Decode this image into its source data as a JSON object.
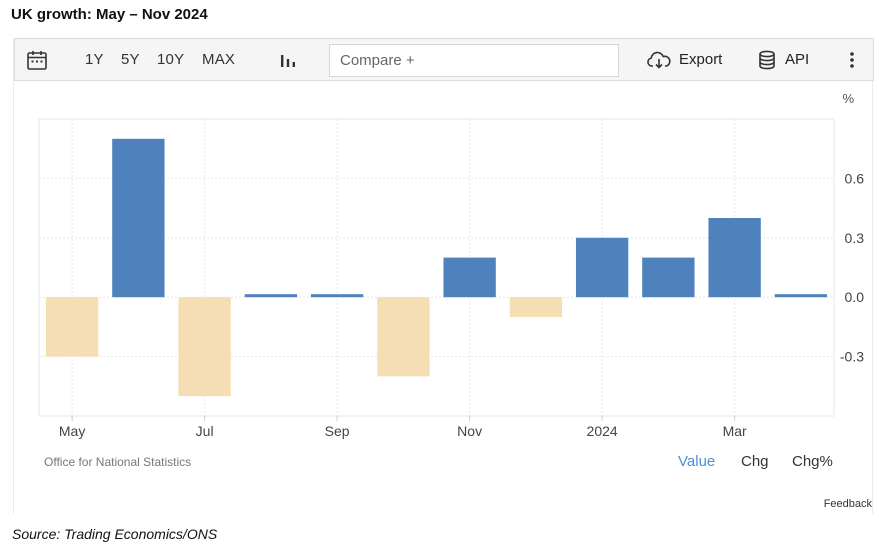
{
  "page": {
    "title": "UK growth: May – Nov 2024",
    "source": "Source: Trading Economics/ONS"
  },
  "toolbar": {
    "ranges": [
      "1Y",
      "5Y",
      "10Y",
      "MAX"
    ],
    "compare_placeholder": "Compare +",
    "export_label": "Export",
    "api_label": "API",
    "icons": {
      "calendar": "calendar-icon",
      "chart_type": "bar-chart-icon",
      "export": "cloud-download-icon",
      "api": "database-icon",
      "more": "more-vertical-icon"
    }
  },
  "chart_footer": {
    "org": "Office for National Statistics",
    "modes": [
      "Value",
      "Chg",
      "Chg%"
    ],
    "active_mode": "Value",
    "feedback": "Feedback"
  },
  "colors": {
    "positive": "#4f81bd",
    "negative": "#f5deb3",
    "active_link": "#4a90d9",
    "grid": "#e6e6e6"
  },
  "chart_data": {
    "type": "bar",
    "title": "UK growth: May – Nov 2024",
    "unit": "%",
    "x_tick_labels": [
      "May",
      "Jul",
      "Sep",
      "Nov",
      "2024",
      "Mar"
    ],
    "x_tick_bar_index": [
      0,
      2,
      4,
      6,
      8,
      10
    ],
    "values": [
      -0.3,
      0.8,
      -0.5,
      0.01,
      0.01,
      -0.4,
      0.2,
      -0.1,
      0.3,
      0.2,
      0.4,
      0.01
    ],
    "y_ticks": [
      0.6,
      0.3,
      0.0,
      -0.3
    ],
    "ylim": [
      -0.6,
      0.9
    ],
    "y_axis_position": "right",
    "grid": true
  }
}
